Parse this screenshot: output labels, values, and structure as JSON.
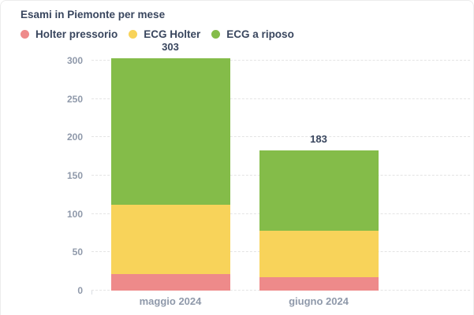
{
  "card": {
    "title": "Esami in Piemonte per mese"
  },
  "colors": {
    "title_text": "#39465e",
    "axis_text": "#8f99aa",
    "gridline": "#e4e4e4",
    "card_border": "#ececec",
    "background": "#ffffff"
  },
  "chart_data": {
    "type": "bar",
    "stacked": true,
    "title": "Esami in Piemonte per mese",
    "categories": [
      "maggio 2024",
      "giugno 2024"
    ],
    "series": [
      {
        "name": "Holter pressorio",
        "color": "#ee8a8a",
        "values": [
          22,
          17
        ]
      },
      {
        "name": "ECG Holter",
        "color": "#f8d35a",
        "values": [
          90,
          61
        ]
      },
      {
        "name": "ECG a riposo",
        "color": "#84bc49",
        "values": [
          191,
          105
        ]
      }
    ],
    "totals": [
      303,
      183
    ],
    "xlabel": "",
    "ylabel": "",
    "ylim": [
      0,
      300
    ],
    "yticks": [
      0,
      50,
      100,
      150,
      200,
      250,
      300
    ],
    "grid": "horizontal-dashed",
    "legend_position": "top-left",
    "legend_marker": "circle"
  }
}
